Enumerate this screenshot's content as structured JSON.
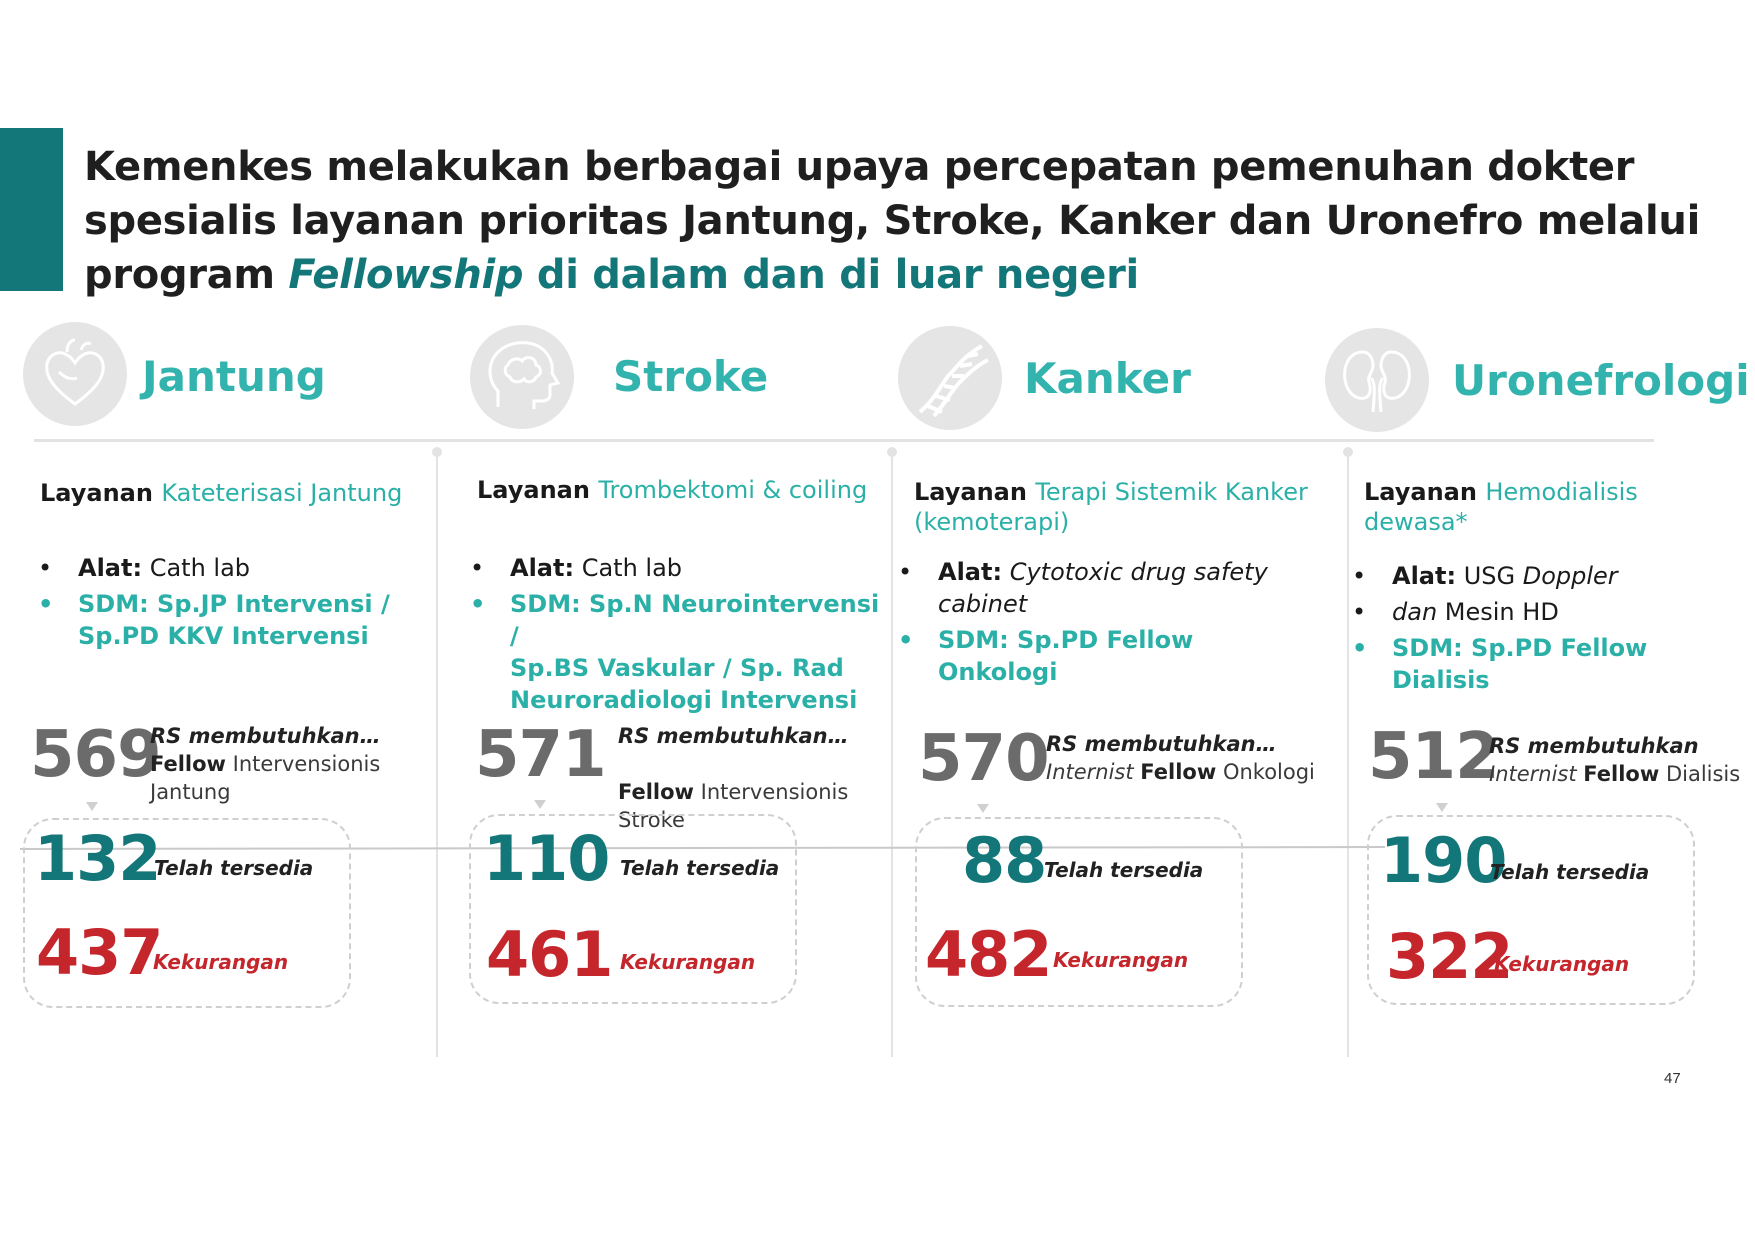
{
  "title": {
    "line1": "Kemenkes melakukan berbagai upaya percepatan pemenuhan dokter",
    "line2": "spesialis layanan prioritas Jantung, Stroke, Kanker dan Uronefro melalui",
    "line3_start": "program ",
    "line3_em": "Fellowship",
    "line3_end": " di dalam dan di luar negeri"
  },
  "columns": [
    {
      "icon": "heart-icon",
      "category": "Jantung",
      "service_prefix": "Layanan ",
      "service_name": "Kateterisasi Jantung",
      "alat_label": "Alat:",
      "alat_value": " Cath lab",
      "sdm_lines": [
        "SDM:  Sp.JP Intervensi /",
        "Sp.PD KKV Intervensi"
      ],
      "need_value": "569",
      "need_heading": "RS membutuhkan…",
      "need_bold": "Fellow",
      "need_rest": " Intervensionis Jantung",
      "available_value": "132",
      "available_label": "Telah tersedia",
      "shortage_value": "437",
      "shortage_label": "Kekurangan"
    },
    {
      "icon": "brain-icon",
      "category": "Stroke",
      "service_prefix": "Layanan ",
      "service_name": "Trombektomi & coiling",
      "alat_label": "Alat:",
      "alat_value": " Cath lab",
      "sdm_lines": [
        "SDM: Sp.N Neurointervensi /",
        "Sp.BS Vaskular / Sp. Rad",
        "Neuroradiologi Intervensi"
      ],
      "need_value": "571",
      "need_heading": "RS membutuhkan…",
      "need_bold": "Fellow",
      "need_rest": " Intervensionis Stroke",
      "available_value": "110",
      "available_label": "Telah tersedia",
      "shortage_value": "461",
      "shortage_label": "Kekurangan"
    },
    {
      "icon": "dna-icon",
      "category": "Kanker",
      "service_prefix": "Layanan ",
      "service_name": "Terapi Sistemik Kanker (kemoterapi)",
      "alat_label": "Alat:",
      "alat_value_italic": " Cytotoxic drug safety cabinet",
      "sdm_lines": [
        "SDM: Sp.PD Fellow Onkologi"
      ],
      "need_value": "570",
      "need_heading": "RS membutuhkan…",
      "need_italic": "Internist ",
      "need_bold": "Fellow",
      "need_rest": " Onkologi",
      "available_value": "88",
      "available_label": "Telah tersedia",
      "shortage_value": "482",
      "shortage_label": "Kekurangan"
    },
    {
      "icon": "kidney-icon",
      "category": "Uronefrologi",
      "service_prefix": "Layanan ",
      "service_name": "Hemodialisis dewasa*",
      "alat_label": "Alat:",
      "alat_value": " USG ",
      "alat_value_italic": "Doppler",
      "alat_second_italic": "dan",
      "alat_second": " Mesin HD",
      "sdm_lines": [
        "SDM: Sp.PD Fellow Dialisis"
      ],
      "need_value": "512",
      "need_heading": "RS membutuhkan",
      "need_italic": "Internist ",
      "need_bold": "Fellow",
      "need_rest": " Dialisis",
      "available_value": "190",
      "available_label": "Telah tersedia",
      "shortage_value": "322",
      "shortage_label": "Kekurangan"
    }
  ],
  "page_number": "47",
  "colors": {
    "teal_dark": "#137678",
    "teal_light": "#33b3ad",
    "red": "#c4262c",
    "gray": "#6b6b6b"
  }
}
